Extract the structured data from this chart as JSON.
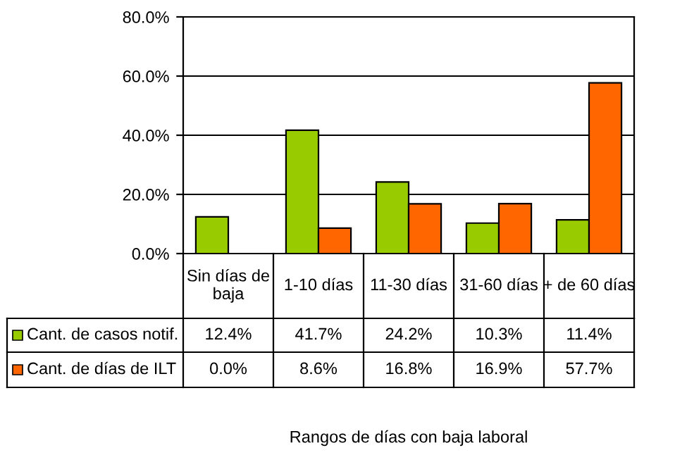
{
  "chart_data": {
    "type": "bar",
    "annotations": [
      "Rangos de días con baja laboral"
    ],
    "categories": [
      "Sin días de\nbaja",
      "1-10 días",
      "11-30 días",
      "31-60 días",
      "+ de 60 días"
    ],
    "series": [
      {
        "name": "Cant. de casos notif.",
        "color": "#99cc00",
        "values": [
          12.4,
          41.7,
          24.2,
          10.3,
          11.4
        ],
        "value_labels": [
          "12.4%",
          "41.7%",
          "24.2%",
          "10.3%",
          "11.4%"
        ]
      },
      {
        "name": "Cant. de días de ILT",
        "color": "#ff6600",
        "values": [
          0.0,
          8.6,
          16.8,
          16.9,
          57.7
        ],
        "value_labels": [
          "0.0%",
          "8.6%",
          "16.8%",
          "16.9%",
          "57.7%"
        ]
      }
    ],
    "ylim": [
      0,
      80
    ],
    "yticks": [
      {
        "value": 0,
        "label": "0.0%"
      },
      {
        "value": 20,
        "label": "20.0%"
      },
      {
        "value": 40,
        "label": "40.0%"
      },
      {
        "value": 60,
        "label": "60.0%"
      },
      {
        "value": 80,
        "label": "80.0%"
      }
    ],
    "grid": "y",
    "legend": "left"
  }
}
